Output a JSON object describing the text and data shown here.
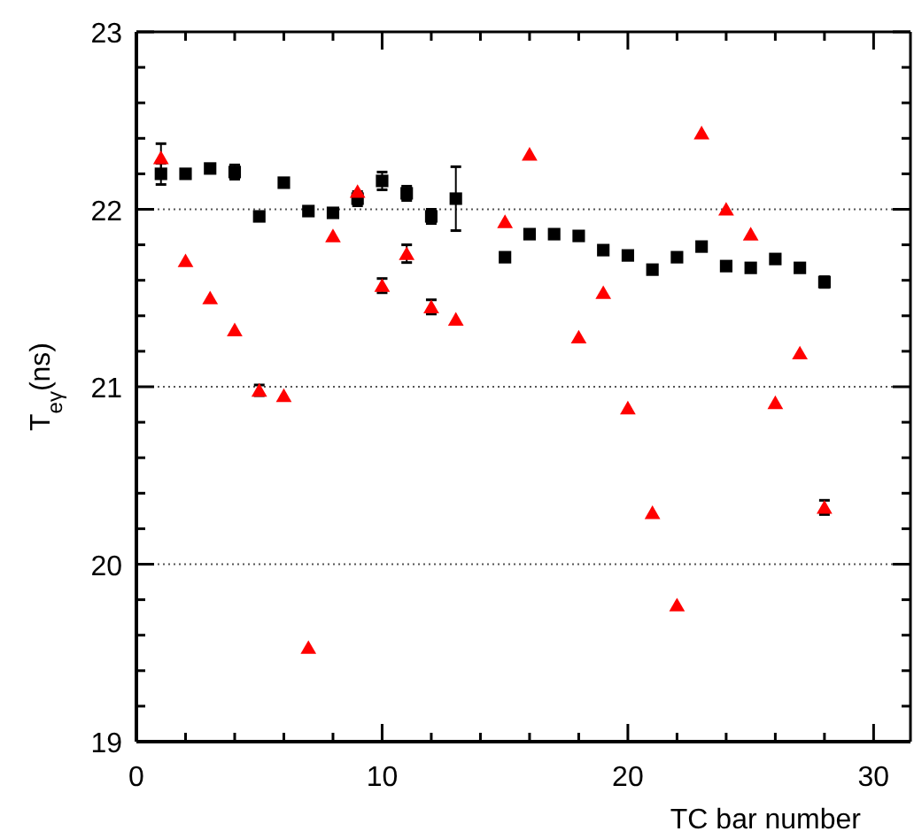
{
  "chart_data": {
    "type": "scatter",
    "xlabel": "TC bar number",
    "ylabel": "T$_{eγ}$(ns)",
    "xlim": [
      0,
      31.5
    ],
    "ylim": [
      19,
      23
    ],
    "xticks": [
      0,
      {
        "value": 2,
        "label": null
      },
      {
        "value": 4,
        "label": null
      },
      {
        "value": 6,
        "label": null
      },
      {
        "value": 8,
        "label": null
      },
      10,
      {
        "value": 12,
        "label": null
      },
      {
        "value": 14,
        "label": null
      },
      {
        "value": 16,
        "label": null
      },
      {
        "value": 18,
        "label": null
      },
      20,
      {
        "value": 22,
        "label": null
      },
      {
        "value": 24,
        "label": null
      },
      {
        "value": 26,
        "label": null
      },
      {
        "value": 28,
        "label": null
      },
      30
    ],
    "yticks": [
      19,
      {
        "value": 19.2,
        "label": null
      },
      {
        "value": 19.4,
        "label": null
      },
      {
        "value": 19.6,
        "label": null
      },
      {
        "value": 19.8,
        "label": null
      },
      20,
      {
        "value": 20.2,
        "label": null
      },
      {
        "value": 20.4,
        "label": null
      },
      {
        "value": 20.6,
        "label": null
      },
      {
        "value": 20.8,
        "label": null
      },
      21,
      {
        "value": 21.2,
        "label": null
      },
      {
        "value": 21.4,
        "label": null
      },
      {
        "value": 21.6,
        "label": null
      },
      {
        "value": 21.8,
        "label": null
      },
      22,
      {
        "value": 22.2,
        "label": null
      },
      {
        "value": 22.4,
        "label": null
      },
      {
        "value": 22.6,
        "label": null
      },
      {
        "value": 22.8,
        "label": null
      },
      23
    ],
    "ref_lines": [
      {
        "axis": "y",
        "value": 20,
        "line_style": "dotted",
        "color": "#555555"
      },
      {
        "axis": "y",
        "value": 21,
        "line_style": "dotted",
        "color": "#555555"
      },
      {
        "axis": "y",
        "value": 22,
        "line_style": "dotted",
        "color": "#555555"
      }
    ],
    "series": [
      {
        "color": "#000000",
        "marker": "square",
        "x": [
          1,
          2,
          3,
          4,
          5,
          6,
          7,
          8,
          9,
          10,
          11,
          12,
          13,
          15,
          16,
          17,
          18,
          19,
          20,
          21,
          22,
          23,
          24,
          25,
          26,
          27,
          28
        ],
        "values": [
          22.2,
          22.2,
          22.23,
          22.21,
          21.96,
          22.15,
          21.99,
          21.98,
          22.06,
          22.16,
          22.09,
          21.96,
          22.06,
          21.73,
          21.86,
          21.86,
          21.85,
          21.77,
          21.74,
          21.66,
          21.73,
          21.79,
          21.68,
          21.67,
          21.72,
          21.67,
          21.59
        ],
        "errors": [
          0.06,
          null,
          null,
          0.04,
          null,
          null,
          null,
          null,
          0.04,
          0.05,
          0.04,
          0.04,
          0.18,
          null,
          null,
          null,
          null,
          null,
          null,
          null,
          null,
          null,
          null,
          null,
          null,
          null,
          0.03
        ]
      },
      {
        "color": "#ff0000",
        "marker": "triangle",
        "x": [
          1,
          2,
          3,
          4,
          5,
          6,
          7,
          8,
          9,
          10,
          11,
          12,
          13,
          15,
          16,
          18,
          19,
          20,
          21,
          22,
          23,
          24,
          25,
          26,
          27,
          28
        ],
        "values": [
          22.29,
          21.71,
          21.5,
          21.32,
          20.98,
          20.95,
          19.53,
          21.85,
          22.1,
          21.57,
          21.75,
          21.45,
          21.38,
          21.93,
          22.31,
          21.28,
          21.53,
          20.88,
          20.29,
          19.77,
          22.43,
          22.0,
          21.86,
          20.91,
          21.19,
          20.32
        ],
        "errors": [
          0.08,
          null,
          null,
          null,
          0.03,
          null,
          null,
          null,
          null,
          0.04,
          0.05,
          0.04,
          null,
          null,
          null,
          null,
          null,
          null,
          null,
          null,
          null,
          null,
          null,
          null,
          null,
          0.04
        ]
      }
    ]
  }
}
